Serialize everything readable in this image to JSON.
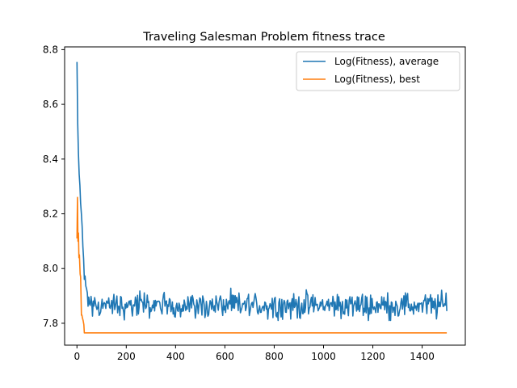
{
  "chart_data": {
    "type": "line",
    "title": "Traveling Salesman Problem fitness trace",
    "xlabel": "",
    "ylabel": "",
    "xlim": [
      -50,
      1575
    ],
    "ylim": [
      7.72,
      8.81
    ],
    "x_ticks": [
      0,
      200,
      400,
      600,
      800,
      1000,
      1200,
      1400
    ],
    "x_tick_labels": [
      "0",
      "200",
      "400",
      "600",
      "800",
      "1000",
      "1200",
      "1400"
    ],
    "y_ticks": [
      7.8,
      8.0,
      8.2,
      8.4,
      8.6,
      8.8
    ],
    "y_tick_labels": [
      "7.8",
      "8.0",
      "8.2",
      "8.4",
      "8.6",
      "8.8"
    ],
    "grid": false,
    "legend_position": "top-right",
    "series": [
      {
        "name": "Log(Fitness), average",
        "color": "#1f77b4",
        "x": [
          0,
          3,
          6,
          10,
          14,
          18,
          22,
          26,
          30,
          35,
          40,
          45,
          50,
          55,
          60,
          70,
          80,
          90,
          100,
          1500
        ],
        "y": [
          8.755,
          8.53,
          8.42,
          8.32,
          8.27,
          8.19,
          8.1,
          8.04,
          7.98,
          7.93,
          7.9,
          7.885,
          7.875,
          7.87,
          7.865,
          7.865,
          7.865,
          7.865,
          7.865,
          7.865
        ],
        "noise_after_x": 40,
        "noise_band": [
          7.81,
          7.935
        ]
      },
      {
        "name": "Log(Fitness), best",
        "color": "#ff7f0e",
        "x": [
          0,
          2,
          4,
          6,
          8,
          10,
          13,
          15,
          18,
          20,
          22,
          25,
          28,
          30,
          33,
          1500
        ],
        "y": [
          8.11,
          8.26,
          8.1,
          8.13,
          8.04,
          8.05,
          7.98,
          7.97,
          7.83,
          7.83,
          7.82,
          7.81,
          7.795,
          7.765,
          7.765,
          7.765
        ]
      }
    ]
  }
}
